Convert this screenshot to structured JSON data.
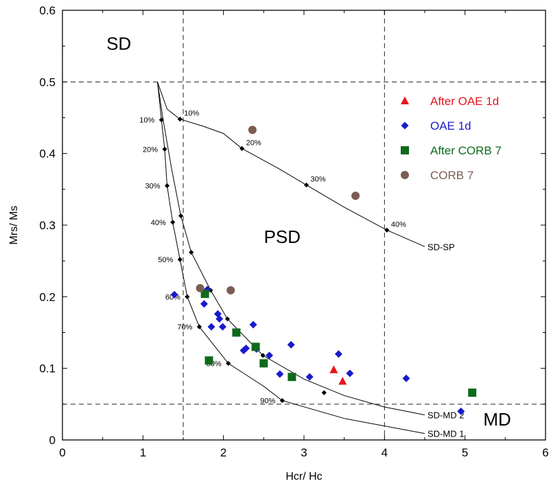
{
  "chart_data": {
    "type": "scatter",
    "xlabel": "Hcr/ Hc",
    "ylabel": "Mrs/ Ms",
    "xlim": [
      0,
      6
    ],
    "ylim": [
      0,
      0.6
    ],
    "xticks": [
      "0",
      "1",
      "2",
      "3",
      "4",
      "5",
      "6"
    ],
    "yticks": [
      "0",
      "0.1",
      "0.2",
      "0.3",
      "0.4",
      "0.5",
      "0.6"
    ],
    "grid": false,
    "legend_position": "top-right",
    "reference_lines": {
      "vertical": [
        1.5,
        4
      ],
      "horizontal": [
        0.5,
        0.05
      ]
    },
    "regions": [
      {
        "label": "SD",
        "x": 0.7,
        "y": 0.545
      },
      {
        "label": "PSD",
        "x": 2.73,
        "y": 0.275
      },
      {
        "label": "MD",
        "x": 5.4,
        "y": 0.02
      }
    ],
    "series": [
      {
        "name": "After OAE 1d",
        "marker": "triangle",
        "color": "#e8141c",
        "points": [
          [
            3.37,
            0.098
          ],
          [
            3.48,
            0.082
          ]
        ]
      },
      {
        "name": "OAE 1d",
        "marker": "diamond",
        "color": "#1a1acc",
        "points": [
          [
            1.39,
            0.203
          ],
          [
            1.76,
            0.19
          ],
          [
            1.8,
            0.21
          ],
          [
            1.85,
            0.158
          ],
          [
            1.93,
            0.176
          ],
          [
            1.95,
            0.169
          ],
          [
            1.99,
            0.158
          ],
          [
            2.25,
            0.125
          ],
          [
            2.28,
            0.128
          ],
          [
            2.37,
            0.161
          ],
          [
            2.41,
            0.127
          ],
          [
            2.57,
            0.118
          ],
          [
            2.7,
            0.092
          ],
          [
            2.84,
            0.133
          ],
          [
            3.07,
            0.088
          ],
          [
            3.43,
            0.12
          ],
          [
            3.57,
            0.093
          ],
          [
            4.27,
            0.086
          ],
          [
            4.95,
            0.04
          ]
        ]
      },
      {
        "name": "After CORB 7",
        "marker": "square",
        "color": "#0f6a1c",
        "points": [
          [
            1.77,
            0.204
          ],
          [
            1.82,
            0.111
          ],
          [
            2.16,
            0.15
          ],
          [
            2.4,
            0.13
          ],
          [
            2.5,
            0.107
          ],
          [
            2.85,
            0.088
          ],
          [
            5.09,
            0.066
          ]
        ]
      },
      {
        "name": "CORB 7",
        "marker": "circle",
        "color": "#7a5c52",
        "points": [
          [
            1.71,
            0.212
          ],
          [
            2.09,
            0.209
          ],
          [
            2.36,
            0.433
          ],
          [
            3.64,
            0.341
          ]
        ]
      }
    ],
    "mixing_curves": [
      {
        "name": "SD-SP",
        "points": [
          [
            1.18,
            0.5
          ],
          [
            1.3,
            0.462
          ],
          [
            1.46,
            0.448
          ],
          [
            1.75,
            0.438
          ],
          [
            2.0,
            0.428
          ],
          [
            2.23,
            0.407
          ],
          [
            2.7,
            0.378
          ],
          [
            3.03,
            0.356
          ],
          [
            3.5,
            0.325
          ],
          [
            4.03,
            0.293
          ],
          [
            4.5,
            0.27
          ]
        ],
        "markers": [
          {
            "x": 1.46,
            "y": 0.448,
            "label": "10%"
          },
          {
            "x": 2.23,
            "y": 0.407,
            "label": "20%"
          },
          {
            "x": 3.03,
            "y": 0.356,
            "label": "30%"
          },
          {
            "x": 4.03,
            "y": 0.293,
            "label": "40%"
          }
        ]
      },
      {
        "name": "SD-MD 2",
        "points": [
          [
            1.18,
            0.5
          ],
          [
            1.25,
            0.447
          ],
          [
            1.36,
            0.376
          ],
          [
            1.47,
            0.313
          ],
          [
            1.6,
            0.262
          ],
          [
            1.84,
            0.209
          ],
          [
            2.05,
            0.169
          ],
          [
            2.49,
            0.118
          ],
          [
            3.0,
            0.085
          ],
          [
            3.5,
            0.062
          ],
          [
            4.0,
            0.046
          ],
          [
            4.5,
            0.035
          ]
        ],
        "markers": [
          {
            "x": 1.47,
            "y": 0.313
          },
          {
            "x": 1.6,
            "y": 0.262
          },
          {
            "x": 1.84,
            "y": 0.209
          },
          {
            "x": 2.05,
            "y": 0.169
          },
          {
            "x": 2.49,
            "y": 0.118
          },
          {
            "x": 3.25,
            "y": 0.066
          }
        ]
      },
      {
        "name": "SD-MD 1",
        "points": [
          [
            1.18,
            0.5
          ],
          [
            1.23,
            0.447
          ],
          [
            1.27,
            0.406
          ],
          [
            1.3,
            0.355
          ],
          [
            1.37,
            0.304
          ],
          [
            1.46,
            0.252
          ],
          [
            1.55,
            0.2
          ],
          [
            1.7,
            0.158
          ],
          [
            2.06,
            0.107
          ],
          [
            2.5,
            0.075
          ],
          [
            2.73,
            0.055
          ],
          [
            3.5,
            0.03
          ],
          [
            4.5,
            0.009
          ]
        ],
        "markers": [
          {
            "x": 1.23,
            "y": 0.447,
            "label": "10%"
          },
          {
            "x": 1.27,
            "y": 0.406,
            "label": "20%"
          },
          {
            "x": 1.3,
            "y": 0.355,
            "label": "30%"
          },
          {
            "x": 1.37,
            "y": 0.304,
            "label": "40%"
          },
          {
            "x": 1.46,
            "y": 0.252,
            "label": "50%"
          },
          {
            "x": 1.55,
            "y": 0.2,
            "label": "60%"
          },
          {
            "x": 1.7,
            "y": 0.158,
            "label": "70%"
          },
          {
            "x": 2.06,
            "y": 0.107,
            "label": "80%"
          },
          {
            "x": 2.73,
            "y": 0.055,
            "label": "90%"
          }
        ]
      }
    ]
  }
}
